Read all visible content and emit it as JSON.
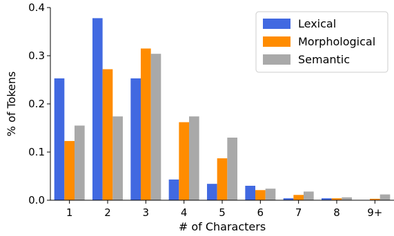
{
  "chart_data": {
    "type": "bar",
    "categories": [
      "1",
      "2",
      "3",
      "4",
      "5",
      "6",
      "7",
      "8",
      "9+"
    ],
    "series": [
      {
        "name": "Lexical",
        "color": "#4169E1",
        "values": [
          0.253,
          0.378,
          0.253,
          0.043,
          0.034,
          0.03,
          0.004,
          0.004,
          0.0
        ]
      },
      {
        "name": "Morphological",
        "color": "#FF8C00",
        "values": [
          0.123,
          0.272,
          0.315,
          0.162,
          0.087,
          0.021,
          0.011,
          0.004,
          0.003
        ]
      },
      {
        "name": "Semantic",
        "color": "#A9A9A9",
        "values": [
          0.155,
          0.174,
          0.304,
          0.174,
          0.13,
          0.024,
          0.018,
          0.006,
          0.012
        ]
      }
    ],
    "xlabel": "# of Characters",
    "ylabel": "% of Tokens",
    "ylim": [
      0,
      0.4
    ],
    "yticks": [
      "0.0",
      "0.1",
      "0.2",
      "0.3",
      "0.4"
    ],
    "legend_position": "top-right",
    "grid": false
  }
}
